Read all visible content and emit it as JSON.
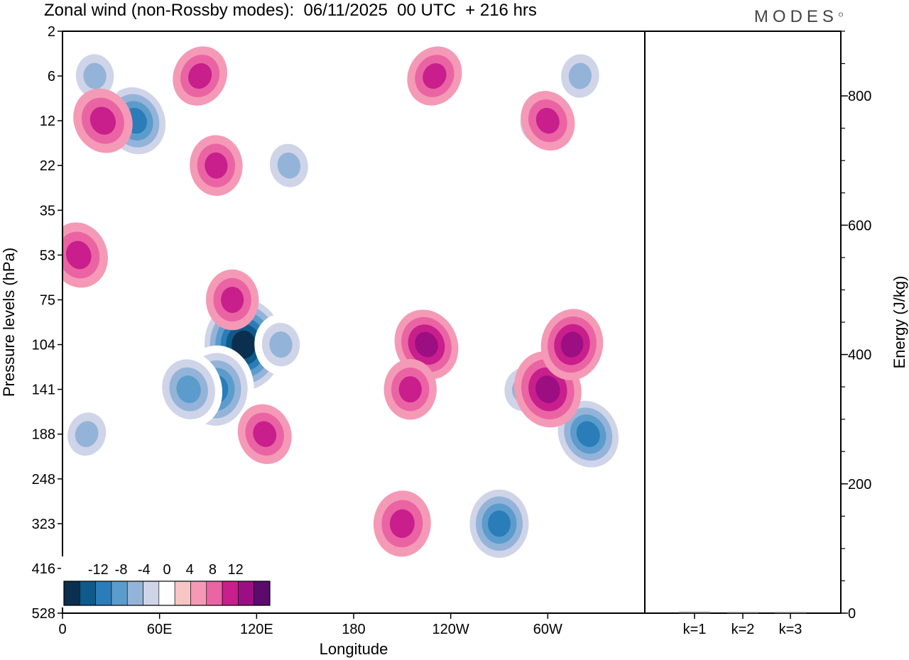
{
  "chart_data": [
    {
      "type": "heatmap",
      "title": "Zonal wind (non-Rossby modes):  06/11/2025  00 UTC  + 216 hrs",
      "xlabel": "Longitude",
      "ylabel": "Pressure levels (hPa)",
      "x_ticks": [
        "0",
        "60E",
        "120E",
        "180",
        "120W",
        "60W"
      ],
      "x_tick_values_deg": [
        0,
        60,
        120,
        180,
        240,
        300
      ],
      "xlim_deg": [
        0,
        360
      ],
      "y_ticks": [
        "2",
        "6",
        "12",
        "22",
        "35",
        "53",
        "75",
        "104",
        "141",
        "188",
        "248",
        "323",
        "416",
        "528"
      ],
      "colorbar": {
        "labels": [
          "-12",
          "-8",
          "-4",
          "0",
          "4",
          "8",
          "12"
        ],
        "label_values": [
          -12,
          -8,
          -4,
          0,
          4,
          8,
          12
        ],
        "levels": [
          -14,
          -12,
          -10,
          -8,
          -6,
          -4,
          -2,
          2,
          4,
          6,
          8,
          10,
          12,
          14
        ],
        "colors": [
          "#0b2f4e",
          "#0e5a8a",
          "#2a7db8",
          "#5c9ccc",
          "#94b3d8",
          "#cfd4e8",
          "#ffffff",
          "#f7c5c3",
          "#f49ab6",
          "#ea64a4",
          "#c81f8c",
          "#9c0f82",
          "#5b0a6e"
        ]
      },
      "features": [
        {
          "lon": 112,
          "level": 104,
          "value": -14
        },
        {
          "lon": 95,
          "level": 141,
          "value": -11
        },
        {
          "lon": 45,
          "level": 12,
          "value": -10
        },
        {
          "lon": 78,
          "level": 141,
          "value": -9
        },
        {
          "lon": 135,
          "level": 104,
          "value": -6
        },
        {
          "lon": 270,
          "level": 323,
          "value": -10
        },
        {
          "lon": 325,
          "level": 188,
          "value": -10
        },
        {
          "lon": 295,
          "level": 12,
          "value": -6
        },
        {
          "lon": 320,
          "level": 6,
          "value": -6
        },
        {
          "lon": 20,
          "level": 6,
          "value": -6
        },
        {
          "lon": 140,
          "level": 22,
          "value": -6
        },
        {
          "lon": 15,
          "level": 188,
          "value": -6
        },
        {
          "lon": 285,
          "level": 141,
          "value": -6
        },
        {
          "lon": 225,
          "level": 104,
          "value": 8
        },
        {
          "lon": 215,
          "level": 141,
          "value": 6
        },
        {
          "lon": 300,
          "level": 141,
          "value": 9
        },
        {
          "lon": 315,
          "level": 104,
          "value": 8
        },
        {
          "lon": 125,
          "level": 188,
          "value": 6
        },
        {
          "lon": 210,
          "level": 323,
          "value": 7
        },
        {
          "lon": 105,
          "level": 75,
          "value": 6
        },
        {
          "lon": 10,
          "level": 53,
          "value": 7
        },
        {
          "lon": 25,
          "level": 12,
          "value": 7
        },
        {
          "lon": 85,
          "level": 6,
          "value": 6
        },
        {
          "lon": 230,
          "level": 6,
          "value": 6
        },
        {
          "lon": 300,
          "level": 12,
          "value": 6
        },
        {
          "lon": 95,
          "level": 22,
          "value": 6
        }
      ]
    },
    {
      "type": "bar",
      "ylabel": "Energy (J/kg)",
      "categories": [
        "k=1",
        "k=2",
        "k=3"
      ],
      "values": [
        2,
        1,
        1
      ],
      "ylim": [
        0,
        900
      ],
      "y_ticks": [
        "0",
        "200",
        "400",
        "600",
        "800"
      ],
      "y_tick_values": [
        0,
        200,
        400,
        600,
        800
      ]
    }
  ],
  "logo": "MODES"
}
